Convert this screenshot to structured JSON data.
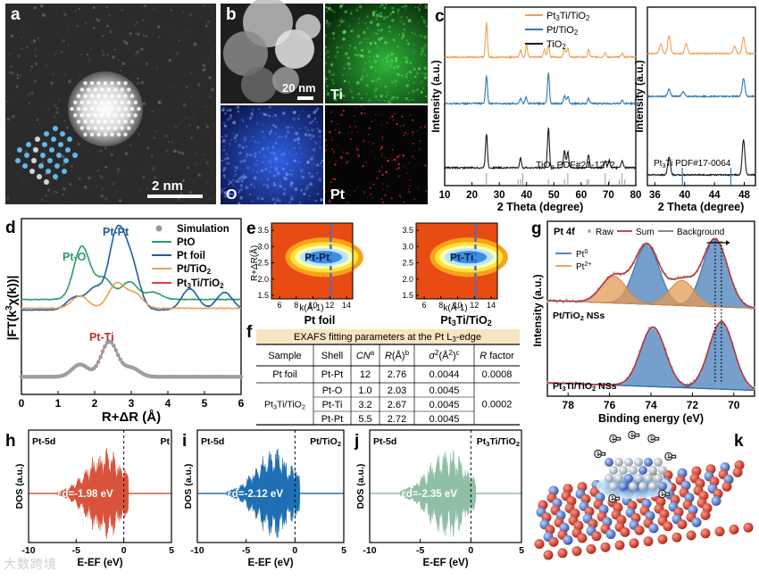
{
  "panels": {
    "a": {
      "label": "a",
      "scale_bar": "2 nm"
    },
    "b": {
      "label": "b",
      "scale_bar": "20 nm",
      "maps": [
        "Ti",
        "O",
        "Pt"
      ]
    },
    "c": {
      "label": "c",
      "xlabel": "2 Theta (degree)",
      "ylabel": "Intensity (a.u.)",
      "xticks": [
        "10",
        "20",
        "30",
        "40",
        "50",
        "60",
        "70",
        "80"
      ],
      "legend": [
        "Pt3Ti/TiO2",
        "Pt/TiO2",
        "TiO2"
      ],
      "ref_tio2": "TiO2 PDF#21-1272",
      "inset_xticks": [
        "36",
        "40",
        "44",
        "48"
      ],
      "ref_pt3ti": "Pt3Ti PDF#17-0064"
    },
    "d": {
      "label": "d",
      "xlabel": "R+ΔR (Å)",
      "ylabel": "|FT(k3χ(k))|",
      "xticks": [
        "0",
        "1",
        "2",
        "3",
        "4",
        "5",
        "6"
      ],
      "legend": [
        "Simulation",
        "PtO",
        "Pt foil",
        "Pt/TiO2",
        "Pt3Ti/TiO2"
      ],
      "annotations": [
        "Pt-O",
        "Pt-Pt",
        "Pt-Ti"
      ]
    },
    "e": {
      "label": "e",
      "xlabel": "k(Å-1)",
      "ylabel": "R+ΔR(Å)",
      "yticks": [
        "3.5",
        "3.0",
        "2.5",
        "2.0",
        "1.5"
      ],
      "xticks": [
        "6",
        "8",
        "10",
        "12",
        "14"
      ],
      "maps": [
        {
          "caption": "Pt foil",
          "peak": "Pt-Pt"
        },
        {
          "caption": "Pt3Ti/TiO2",
          "peak": "Pt-Ti"
        }
      ]
    },
    "f": {
      "label": "f",
      "title": "EXAFS fitting parameters at the Pt L3-edge",
      "columns": [
        "Sample",
        "Shell",
        "CNa",
        "R(Å)b",
        "σ2(Å2)c",
        "R factor"
      ],
      "rows": [
        [
          "Pt foil",
          "Pt-Pt",
          "12",
          "2.76",
          "0.0044",
          "0.0008"
        ],
        [
          "Pt3Ti/TiO2",
          "Pt-O",
          "1.0",
          "2.03",
          "0.0045",
          "0.0002"
        ],
        [
          "",
          "Pt-Ti",
          "3.2",
          "2.67",
          "0.0045",
          ""
        ],
        [
          "",
          "Pt-Pt",
          "5.5",
          "2.72",
          "0.0045",
          ""
        ]
      ]
    },
    "g": {
      "label": "g",
      "title": "Pt 4f",
      "legend": [
        "Raw",
        "Sum",
        "Background",
        "Pt0",
        "Pt2+"
      ],
      "xlabel": "Binding energy (eV)",
      "ylabel": "Intensity (a.u.)",
      "xticks": [
        "78",
        "76",
        "74",
        "72",
        "70"
      ],
      "sample_labels": [
        "Pt/TiO2 NSs",
        "Pt3Ti/TiO2 NSs"
      ]
    },
    "h": {
      "label": "h",
      "tag": "Pt-5d",
      "sample": "Pt",
      "d_band": "εd=-1.98 eV",
      "color": "#d9533c"
    },
    "i": {
      "label": "i",
      "tag": "Pt-5d",
      "sample": "Pt/TiO2",
      "d_band": "εd=-2.12 eV",
      "color": "#1f6fb4"
    },
    "j": {
      "label": "j",
      "tag": "Pt-5d",
      "sample": "Pt3Ti/TiO2",
      "d_band": "εd=-2.35 eV",
      "color": "#8fbfa5"
    },
    "dos_axis": {
      "ylabel": "DOS (a.u.)",
      "xlabel": "E-EF (eV)",
      "xticks": [
        "-10",
        "-5",
        "0",
        "5"
      ]
    },
    "k": {
      "label": "k",
      "electron": "e-"
    }
  },
  "chart_data": [
    {
      "panel": "c",
      "type": "line",
      "title": "",
      "xlabel": "2 Theta (degree)",
      "ylabel": "Intensity (a.u.)",
      "xlim": [
        10,
        80
      ],
      "series": [
        {
          "name": "Pt3Ti/TiO2",
          "color": "#f0a052",
          "baseline": 0.72,
          "peaks": [
            [
              25.3,
              0.55
            ],
            [
              37.8,
              0.12
            ],
            [
              40.0,
              0.2
            ],
            [
              46.5,
              0.12
            ],
            [
              48.0,
              0.2
            ],
            [
              53.9,
              0.15
            ],
            [
              55.1,
              0.15
            ],
            [
              62.7,
              0.12
            ],
            [
              68.8,
              0.08
            ],
            [
              75.0,
              0.07
            ]
          ]
        },
        {
          "name": "Pt/TiO2",
          "color": "#2f79b5",
          "baseline": 0.46,
          "peaks": [
            [
              25.3,
              0.45
            ],
            [
              37.8,
              0.08
            ],
            [
              39.8,
              0.1
            ],
            [
              48.0,
              0.5
            ],
            [
              53.9,
              0.12
            ],
            [
              55.1,
              0.12
            ],
            [
              62.7,
              0.08
            ],
            [
              75.0,
              0.05
            ]
          ]
        },
        {
          "name": "TiO2",
          "color": "#1a1a1a",
          "baseline": 0.1,
          "peaks": [
            [
              25.3,
              0.55
            ],
            [
              37.8,
              0.15
            ],
            [
              48.0,
              0.65
            ],
            [
              53.9,
              0.28
            ],
            [
              55.1,
              0.26
            ],
            [
              62.7,
              0.2
            ],
            [
              68.8,
              0.12
            ],
            [
              70.3,
              0.12
            ],
            [
              75.0,
              0.12
            ]
          ]
        }
      ],
      "reference_lines_TiO2": [
        25.3,
        36.9,
        37.8,
        38.6,
        48.0,
        53.9,
        55.1,
        62.1,
        62.7,
        68.8,
        70.3,
        74.0,
        75.0,
        76.0
      ]
    },
    {
      "panel": "c-inset",
      "type": "line",
      "xlim": [
        35,
        49.5
      ],
      "series": [
        {
          "name": "Pt3Ti/TiO2",
          "color": "#f0a052",
          "baseline": 0.74,
          "peaks": [
            [
              36.8,
              0.25
            ],
            [
              37.9,
              0.45
            ],
            [
              40.2,
              0.25
            ],
            [
              46.7,
              0.18
            ],
            [
              47.9,
              0.42
            ]
          ]
        },
        {
          "name": "Pt/TiO2",
          "color": "#2f79b5",
          "baseline": 0.5,
          "peaks": [
            [
              37.9,
              0.18
            ],
            [
              39.8,
              0.12
            ],
            [
              47.9,
              0.45
            ]
          ]
        },
        {
          "name": "TiO2",
          "color": "#1a1a1a",
          "baseline": 0.06,
          "peaks": [
            [
              37.9,
              0.45
            ],
            [
              47.9,
              0.9
            ]
          ]
        }
      ],
      "reference_lines_Pt3Ti": [
        39.7,
        46.2
      ]
    },
    {
      "panel": "d",
      "type": "line",
      "xlabel": "R+ΔR (Å)",
      "ylabel": "|FT(k3χ(k))|",
      "xlim": [
        0,
        6
      ],
      "series": [
        {
          "name": "PtO",
          "color": "#2a9d6a",
          "offset": 0.54,
          "peaks": [
            [
              1.65,
              0.3
            ],
            [
              2.25,
              0.12
            ],
            [
              2.95,
              0.1
            ],
            [
              3.6,
              0.04
            ]
          ]
        },
        {
          "name": "Pt foil",
          "color": "#1f5f9e",
          "offset": 0.48,
          "peaks": [
            [
              1.45,
              0.07
            ],
            [
              2.0,
              0.12
            ],
            [
              2.6,
              0.42
            ],
            [
              3.0,
              0.25
            ],
            [
              4.6,
              0.12
            ],
            [
              5.55,
              0.1
            ]
          ]
        },
        {
          "name": "Pt/TiO2",
          "color": "#f0a052",
          "offset": 0.49,
          "peaks": [
            [
              1.6,
              0.07
            ],
            [
              2.6,
              0.14
            ],
            [
              3.1,
              0.08
            ]
          ]
        },
        {
          "name": "Pt3Ti/TiO2",
          "color": "#e04040",
          "offset": 0.1,
          "peaks": [
            [
              1.6,
              0.07
            ],
            [
              2.4,
              0.2
            ],
            [
              3.0,
              0.05
            ]
          ]
        },
        {
          "name": "Simulation",
          "color": "#999999",
          "offset": 0.1,
          "peaks": [
            [
              1.6,
              0.07
            ],
            [
              2.4,
              0.2
            ],
            [
              3.0,
              0.05
            ]
          ]
        }
      ]
    },
    {
      "panel": "g",
      "type": "line",
      "xlabel": "Binding energy (eV)",
      "ylabel": "Intensity (a.u.)",
      "xlim": [
        79,
        69
      ],
      "series": [
        {
          "name": "Pt/TiO2 Pt0",
          "color": "#3a78b5",
          "components": [
            [
              74.2,
              0.62
            ],
            [
              70.9,
              0.7
            ]
          ]
        },
        {
          "name": "Pt/TiO2 Pt2+",
          "color": "#e39b55",
          "components": [
            [
              75.8,
              0.28
            ],
            [
              72.5,
              0.26
            ]
          ]
        },
        {
          "name": "Pt3Ti/TiO2 Pt0",
          "color": "#3a78b5",
          "components": [
            [
              73.9,
              0.62
            ],
            [
              70.6,
              0.7
            ]
          ]
        }
      ]
    },
    {
      "panel": "h",
      "type": "area",
      "xlabel": "E-EF (eV)",
      "ylabel": "DOS (a.u.)",
      "xlim": [
        -10,
        5
      ],
      "d_band_center": -1.98
    },
    {
      "panel": "i",
      "type": "area",
      "xlabel": "E-EF (eV)",
      "ylabel": "DOS (a.u.)",
      "xlim": [
        -10,
        5
      ],
      "d_band_center": -2.12
    },
    {
      "panel": "j",
      "type": "area",
      "xlabel": "E-EF (eV)",
      "ylabel": "DOS (a.u.)",
      "xlim": [
        -10,
        5
      ],
      "d_band_center": -2.35
    }
  ],
  "watermark": "大数跨境"
}
